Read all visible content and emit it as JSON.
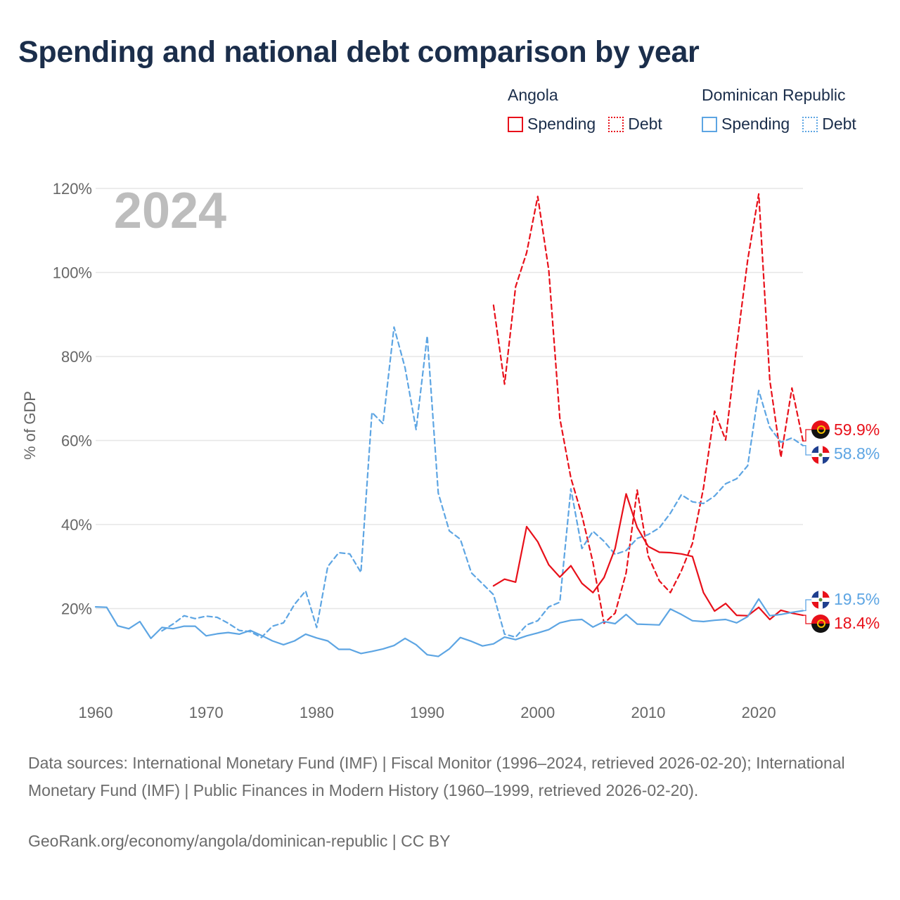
{
  "title": "Spending and national debt comparison by year",
  "legend": {
    "groups": [
      {
        "country": "Angola",
        "color": "#e8101a",
        "items": [
          {
            "label": "Spending",
            "style": "solid"
          },
          {
            "label": "Debt",
            "style": "dotted"
          }
        ]
      },
      {
        "country": "Dominican Republic",
        "color": "#5da5e3",
        "items": [
          {
            "label": "Spending",
            "style": "solid"
          },
          {
            "label": "Debt",
            "style": "dotted"
          }
        ]
      }
    ]
  },
  "footer": {
    "source": "Data sources: International Monetary Fund (IMF) | Fiscal Monitor (1996–2024, retrieved 2026-02-20); International Monetary Fund (IMF) | Public Finances in Modern History (1960–1999, retrieved 2026-02-20).",
    "credit": "GeoRank.org/economy/angola/dominican-republic | CC BY"
  },
  "chart_data": {
    "type": "line",
    "year_label": "2024",
    "ylabel": "% of GDP",
    "xlim": [
      1960,
      2024
    ],
    "ylim": [
      0,
      120
    ],
    "yticks": [
      20,
      40,
      60,
      80,
      100,
      120
    ],
    "ytick_labels": [
      "20%",
      "40%",
      "60%",
      "80%",
      "100%",
      "120%"
    ],
    "xticks": [
      1960,
      1970,
      1980,
      1990,
      2000,
      2010,
      2020
    ],
    "xtick_labels": [
      "1960",
      "1970",
      "1980",
      "1990",
      "2000",
      "2010",
      "2020"
    ],
    "series": [
      {
        "name": "Angola Debt",
        "country": "Angola",
        "measure": "Debt",
        "color": "#e8101a",
        "dash": true,
        "start_year": 1996,
        "values": [
          92.2,
          73.4,
          96.6,
          104.7,
          118.1,
          100.5,
          65.3,
          51.1,
          42.2,
          31.0,
          16.5,
          18.9,
          28.5,
          48.2,
          32.5,
          26.6,
          23.8,
          29.0,
          35.5,
          48.7,
          67.0,
          60.1,
          82.5,
          103.0,
          118.7,
          74.4,
          56.0,
          72.5,
          59.9
        ],
        "end_label": "59.9%"
      },
      {
        "name": "Dominican Republic Debt",
        "country": "Dominican Republic",
        "measure": "Debt",
        "color": "#5da5e3",
        "dash": true,
        "start_year": 1966,
        "values": [
          14.7,
          16.3,
          18.3,
          17.6,
          18.2,
          17.9,
          16.5,
          14.8,
          14.5,
          13.1,
          15.8,
          16.6,
          21.0,
          24.2,
          15.5,
          30.0,
          33.3,
          33.0,
          28.6,
          66.7,
          64.0,
          87.0,
          77.3,
          62.6,
          84.9,
          47.5,
          38.5,
          36.5,
          28.5,
          25.9,
          23.3,
          13.9,
          13.2,
          16.1,
          17.1,
          20.4,
          21.5,
          48.5,
          34.3,
          38.4,
          36.0,
          32.9,
          33.8,
          36.7,
          37.6,
          39.2,
          42.7,
          47.1,
          45.4,
          45.0,
          46.8,
          49.7,
          50.9,
          54.0,
          71.9,
          63.1,
          59.6,
          60.6,
          58.8
        ],
        "end_label": "58.8%"
      },
      {
        "name": "Angola Spending",
        "country": "Angola",
        "measure": "Spending",
        "color": "#e8101a",
        "dash": false,
        "start_year": 1996,
        "values": [
          25.4,
          27.0,
          26.3,
          39.5,
          35.9,
          30.4,
          27.5,
          30.2,
          26.0,
          23.8,
          27.4,
          34.3,
          47.3,
          39.3,
          34.8,
          33.4,
          33.3,
          33.0,
          32.4,
          23.8,
          19.4,
          21.2,
          18.4,
          18.3,
          20.3,
          17.4,
          19.6,
          18.9,
          18.4
        ],
        "end_label": "18.4%"
      },
      {
        "name": "Dominican Republic Spending",
        "country": "Dominican Republic",
        "measure": "Spending",
        "color": "#5da5e3",
        "dash": false,
        "start_year": 1960,
        "values": [
          20.4,
          20.3,
          15.9,
          15.2,
          16.9,
          12.9,
          15.5,
          15.2,
          15.8,
          15.8,
          13.5,
          14.0,
          14.3,
          13.9,
          14.8,
          13.6,
          12.3,
          11.4,
          12.3,
          13.9,
          13.0,
          12.3,
          10.3,
          10.3,
          9.3,
          9.8,
          10.4,
          11.2,
          12.9,
          11.4,
          9.0,
          8.6,
          10.4,
          13.1,
          12.2,
          11.1,
          11.6,
          13.2,
          12.6,
          13.5,
          14.2,
          15.0,
          16.6,
          17.2,
          17.4,
          15.6,
          16.9,
          16.4,
          18.6,
          16.3,
          16.2,
          16.1,
          19.9,
          18.6,
          17.1,
          16.9,
          17.2,
          17.4,
          16.6,
          18.1,
          22.3,
          18.3,
          18.6,
          19.1,
          19.5
        ],
        "end_label": "19.5%"
      }
    ]
  }
}
